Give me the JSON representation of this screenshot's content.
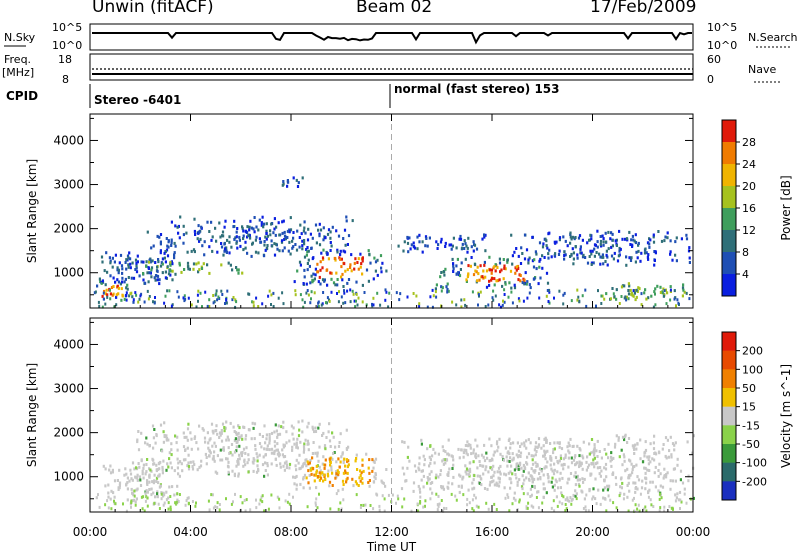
{
  "header": {
    "station": "Unwin (fitACF)",
    "beam": "Beam 02",
    "date": "17/Feb/2009"
  },
  "top_strip": {
    "left_label": "N.Sky",
    "left_hi": "10^5",
    "left_lo": "10^0",
    "right_label": "N.Search",
    "right_hi": "10^5",
    "right_lo": "10^0"
  },
  "freq_strip": {
    "left_label_1": "Freq.",
    "left_label_2": "[MHz]",
    "left_hi": "18",
    "left_lo": "8",
    "right_label": "Nave",
    "right_hi": "60",
    "right_lo": "0"
  },
  "cpid": {
    "label": "CPID",
    "mode1": "Stereo -6401",
    "mode2": "normal (fast stereo) 153"
  },
  "chart_data": [
    {
      "type": "heatmap",
      "panel": "power",
      "ylabel": "Slant Range [km]",
      "yticks": [
        "1000",
        "2000",
        "3000",
        "4000"
      ],
      "ylim": [
        200,
        4600
      ],
      "xlabel": "Time UT",
      "xticks": [
        "00:00",
        "04:00",
        "08:00",
        "12:00",
        "16:00",
        "20:00",
        "00:00"
      ],
      "xlim": [
        0,
        24
      ],
      "colorbar": {
        "label": "Power [dB]",
        "ticks": [
          "4",
          "8",
          "12",
          "16",
          "20",
          "24",
          "28"
        ],
        "colors": [
          "#0a1fe0",
          "#1f4fb4",
          "#2f6f78",
          "#3f9e5c",
          "#a6c21e",
          "#f0b400",
          "#f07b00",
          "#e01a0a"
        ]
      },
      "echoes": [
        {
          "t0": 0.0,
          "t1": 1.8,
          "r0": 350,
          "r1": 900,
          "level": "high"
        },
        {
          "t0": 0.2,
          "t1": 3.5,
          "r0": 700,
          "r1": 1500,
          "level": "low"
        },
        {
          "t0": 1.8,
          "t1": 6.5,
          "r0": 1000,
          "r1": 1300,
          "level": "mid"
        },
        {
          "t0": 2.0,
          "t1": 10.5,
          "r0": 1400,
          "r1": 2300,
          "level": "low"
        },
        {
          "t0": 8.0,
          "t1": 11.8,
          "r0": 700,
          "r1": 1600,
          "level": "high"
        },
        {
          "t0": 7.5,
          "t1": 8.5,
          "r0": 2900,
          "r1": 3200,
          "level": "low"
        },
        {
          "t0": 12.2,
          "t1": 16.0,
          "r0": 1500,
          "r1": 1900,
          "level": "low"
        },
        {
          "t0": 13.5,
          "t1": 18.5,
          "r0": 650,
          "r1": 1400,
          "level": "high"
        },
        {
          "t0": 16.5,
          "t1": 24.0,
          "r0": 1200,
          "r1": 2000,
          "level": "low"
        },
        {
          "t0": 20.5,
          "t1": 24.0,
          "r0": 400,
          "r1": 800,
          "level": "mid"
        }
      ]
    },
    {
      "type": "heatmap",
      "panel": "velocity",
      "ylabel": "Slant Range [km]",
      "yticks": [
        "1000",
        "2000",
        "3000",
        "4000"
      ],
      "ylim": [
        200,
        4600
      ],
      "xlabel": "Time UT",
      "xticks": [
        "00:00",
        "04:00",
        "08:00",
        "12:00",
        "16:00",
        "20:00",
        "00:00"
      ],
      "xlim": [
        0,
        24
      ],
      "colorbar": {
        "label": "Velocity [m s^-1]",
        "ticks": [
          "200",
          "100",
          "50",
          "15",
          "-15",
          "-50",
          "-100",
          "-200"
        ],
        "colors": [
          "#1a2fbf",
          "#2a6a6a",
          "#3a9a3a",
          "#8ad24a",
          "#c8c8c8",
          "#f0c000",
          "#f08000",
          "#e84a00",
          "#e01a0a"
        ]
      },
      "echoes": [
        {
          "t0": 0.0,
          "t1": 3.5,
          "r0": 400,
          "r1": 1400,
          "level": "grey"
        },
        {
          "t0": 1.8,
          "t1": 10.5,
          "r0": 1000,
          "r1": 2300,
          "level": "grey"
        },
        {
          "t0": 8.0,
          "t1": 11.8,
          "r0": 700,
          "r1": 1600,
          "level": "orange"
        },
        {
          "t0": 12.2,
          "t1": 18.5,
          "r0": 650,
          "r1": 1900,
          "level": "grey"
        },
        {
          "t0": 16.5,
          "t1": 24.0,
          "r0": 500,
          "r1": 2000,
          "level": "grey"
        }
      ]
    }
  ]
}
